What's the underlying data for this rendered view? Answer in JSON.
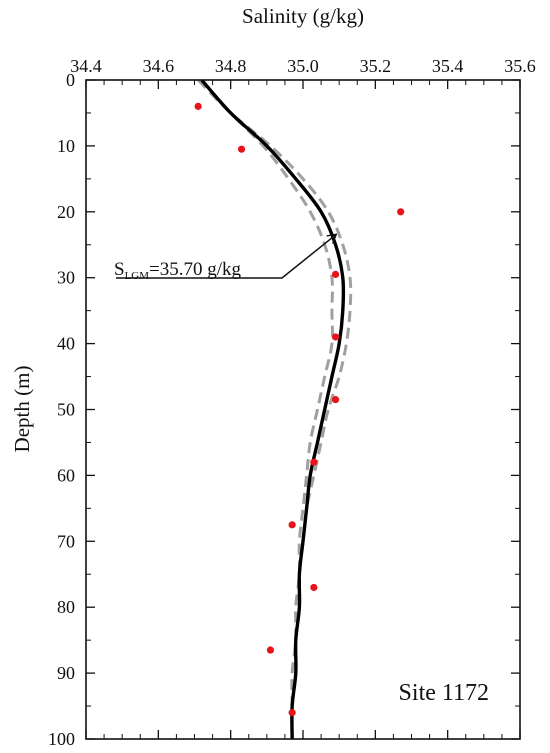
{
  "chart_data": {
    "type": "scatter",
    "title": "",
    "xlabel": "Salinity (g/kg)",
    "ylabel": "Depth (m)",
    "xlim": [
      34.4,
      35.6
    ],
    "ylim": [
      0,
      100
    ],
    "y_inverted": true,
    "x_axis_position": "top",
    "grid": false,
    "xticks": [
      "34.4",
      "34.6",
      "34.8",
      "35.0",
      "35.2",
      "35.4",
      "35.6"
    ],
    "yticks": [
      "0",
      "10",
      "20",
      "30",
      "40",
      "50",
      "60",
      "70",
      "80",
      "90",
      "100"
    ],
    "series": [
      {
        "kind": "points",
        "color": "#e8141b",
        "points": [
          {
            "x": 34.71,
            "y": 4.0
          },
          {
            "x": 34.83,
            "y": 10.5
          },
          {
            "x": 35.27,
            "y": 20.0
          },
          {
            "x": 35.09,
            "y": 29.5
          },
          {
            "x": 35.09,
            "y": 39.0
          },
          {
            "x": 35.09,
            "y": 48.5
          },
          {
            "x": 35.03,
            "y": 58.0
          },
          {
            "x": 34.97,
            "y": 67.5
          },
          {
            "x": 35.03,
            "y": 77.0
          },
          {
            "x": 34.91,
            "y": 86.5
          },
          {
            "x": 34.97,
            "y": 96.0
          }
        ]
      },
      {
        "kind": "line",
        "style": "solid",
        "color": "#000000",
        "points": [
          {
            "x": 34.72,
            "y": 0
          },
          {
            "x": 34.8,
            "y": 5
          },
          {
            "x": 34.9,
            "y": 10
          },
          {
            "x": 34.98,
            "y": 15
          },
          {
            "x": 35.05,
            "y": 20
          },
          {
            "x": 35.09,
            "y": 25
          },
          {
            "x": 35.11,
            "y": 30
          },
          {
            "x": 35.11,
            "y": 35
          },
          {
            "x": 35.1,
            "y": 40
          },
          {
            "x": 35.08,
            "y": 45
          },
          {
            "x": 35.06,
            "y": 50
          },
          {
            "x": 35.04,
            "y": 55
          },
          {
            "x": 35.02,
            "y": 60
          },
          {
            "x": 35.01,
            "y": 65
          },
          {
            "x": 35.0,
            "y": 70
          },
          {
            "x": 34.99,
            "y": 75
          },
          {
            "x": 34.99,
            "y": 80
          },
          {
            "x": 34.98,
            "y": 85
          },
          {
            "x": 34.98,
            "y": 90
          },
          {
            "x": 34.97,
            "y": 95
          },
          {
            "x": 34.97,
            "y": 100
          }
        ]
      },
      {
        "kind": "line",
        "style": "dashed",
        "color": "#a0a0a0",
        "points": [
          {
            "x": 34.71,
            "y": 0
          },
          {
            "x": 34.8,
            "y": 5
          },
          {
            "x": 34.91,
            "y": 10
          },
          {
            "x": 35.0,
            "y": 15
          },
          {
            "x": 35.07,
            "y": 20
          },
          {
            "x": 35.11,
            "y": 25
          },
          {
            "x": 35.13,
            "y": 30
          },
          {
            "x": 35.13,
            "y": 35
          },
          {
            "x": 35.12,
            "y": 40
          },
          {
            "x": 35.1,
            "y": 45
          },
          {
            "x": 35.07,
            "y": 50
          },
          {
            "x": 35.05,
            "y": 55
          },
          {
            "x": 35.03,
            "y": 60
          },
          {
            "x": 35.01,
            "y": 65
          },
          {
            "x": 35.0,
            "y": 70
          },
          {
            "x": 34.99,
            "y": 75
          },
          {
            "x": 34.99,
            "y": 80
          },
          {
            "x": 34.98,
            "y": 85
          },
          {
            "x": 34.98,
            "y": 90
          },
          {
            "x": 34.97,
            "y": 95
          },
          {
            "x": 34.97,
            "y": 100
          }
        ]
      },
      {
        "kind": "line",
        "style": "dashed",
        "color": "#a0a0a0",
        "points": [
          {
            "x": 34.72,
            "y": 0
          },
          {
            "x": 34.8,
            "y": 5
          },
          {
            "x": 34.89,
            "y": 10
          },
          {
            "x": 34.96,
            "y": 15
          },
          {
            "x": 35.02,
            "y": 20
          },
          {
            "x": 35.06,
            "y": 25
          },
          {
            "x": 35.08,
            "y": 30
          },
          {
            "x": 35.08,
            "y": 35
          },
          {
            "x": 35.08,
            "y": 40
          },
          {
            "x": 35.06,
            "y": 45
          },
          {
            "x": 35.04,
            "y": 50
          },
          {
            "x": 35.02,
            "y": 55
          },
          {
            "x": 35.01,
            "y": 60
          },
          {
            "x": 35.0,
            "y": 65
          },
          {
            "x": 34.99,
            "y": 70
          },
          {
            "x": 34.99,
            "y": 75
          },
          {
            "x": 34.98,
            "y": 80
          },
          {
            "x": 34.98,
            "y": 85
          },
          {
            "x": 34.97,
            "y": 90
          },
          {
            "x": 34.97,
            "y": 95
          },
          {
            "x": 34.97,
            "y": 100
          }
        ]
      }
    ],
    "annotation": {
      "text_main": "S",
      "text_sub": "LGM",
      "text_value": "=35.70 g/kg",
      "arrow_target": {
        "x": 35.09,
        "y": 23.5
      }
    },
    "site_label": "Site 1172"
  }
}
